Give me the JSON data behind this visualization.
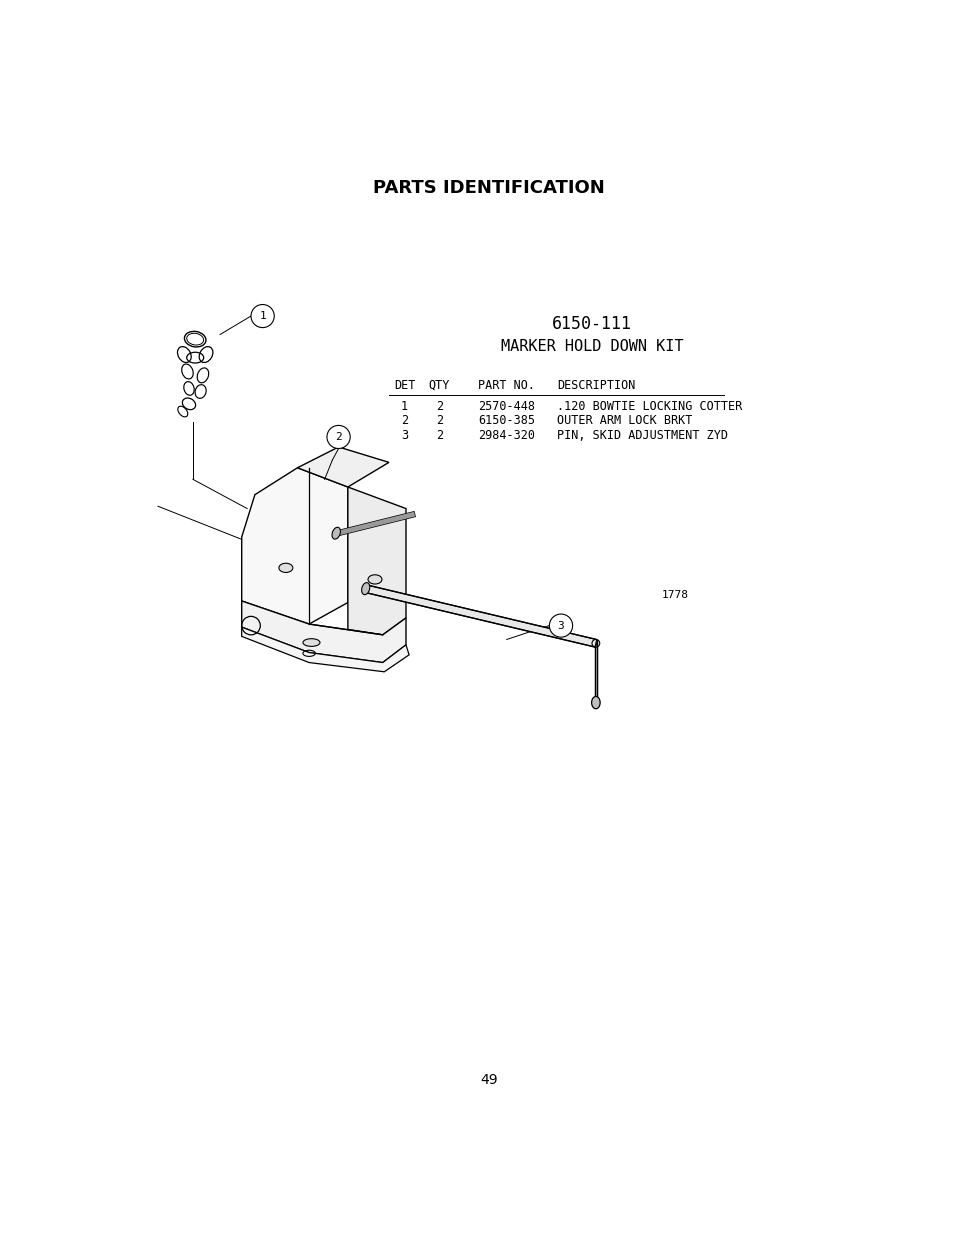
{
  "title": "PARTS IDENTIFICATION",
  "part_number": "6150-111",
  "part_name": "MARKER HOLD DOWN KIT",
  "table_headers": [
    "DET",
    "QTY",
    "PART NO.",
    "DESCRIPTION"
  ],
  "table_rows": [
    [
      "1",
      "2",
      "2570-448",
      ".120 BOWTIE LOCKING COTTER"
    ],
    [
      "2",
      "2",
      "6150-385",
      "OUTER ARM LOCK BRKT"
    ],
    [
      "3",
      "2",
      "2984-320",
      "PIN, SKID ADJUSTMENT ZYD"
    ]
  ],
  "page_number": "49",
  "figure_number": "1778",
  "bg_color": "#ffffff",
  "text_color": "#000000",
  "title_fontsize": 13,
  "table_fontsize": 8.5,
  "callout_fontsize": 8,
  "part_name_fontsize": 11,
  "part_num_fontsize": 12
}
